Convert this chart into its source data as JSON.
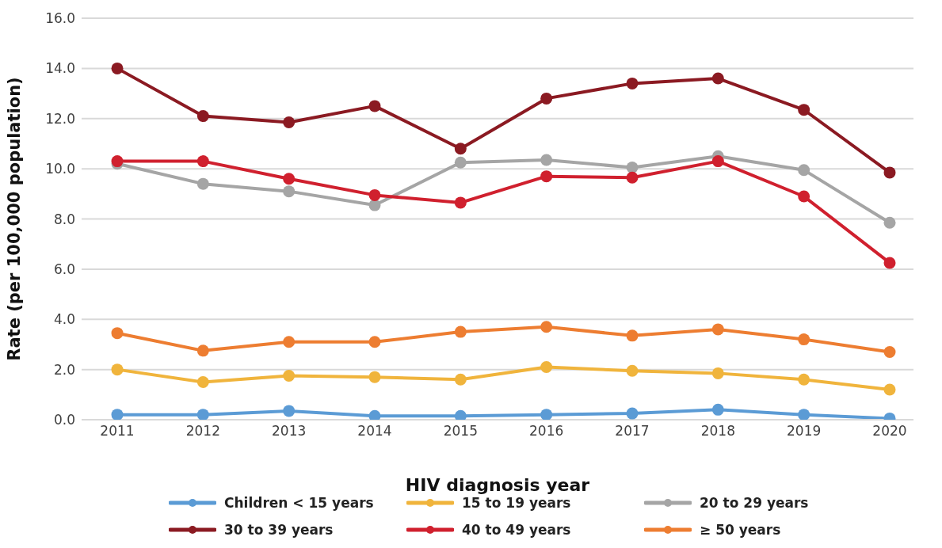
{
  "chart_data": {
    "type": "line",
    "xlabel": "HIV diagnosis year",
    "ylabel": "Rate   (per 100,000 population)",
    "categories": [
      "2011",
      "2012",
      "2013",
      "2014",
      "2015",
      "2016",
      "2017",
      "2018",
      "2019",
      "2020"
    ],
    "series": [
      {
        "name": "Children < 15 years",
        "color": "#5b9bd5",
        "values": [
          0.2,
          0.2,
          0.35,
          0.15,
          0.15,
          0.2,
          0.25,
          0.4,
          0.2,
          0.05
        ]
      },
      {
        "name": "15 to 19 years",
        "color": "#f0b43c",
        "values": [
          2.0,
          1.5,
          1.75,
          1.7,
          1.6,
          2.1,
          1.95,
          1.85,
          1.6,
          1.2
        ]
      },
      {
        "name": "20 to 29 years",
        "color": "#a5a5a5",
        "values": [
          10.2,
          9.4,
          9.1,
          8.55,
          10.25,
          10.35,
          10.05,
          10.5,
          9.95,
          7.85
        ]
      },
      {
        "name": "30 to 39 years",
        "color": "#8b1a22",
        "values": [
          14.0,
          12.1,
          11.85,
          12.5,
          10.8,
          12.8,
          13.4,
          13.6,
          12.35,
          9.85
        ]
      },
      {
        "name": "40 to 49 years",
        "color": "#d0202e",
        "values": [
          10.3,
          10.3,
          9.6,
          8.95,
          8.65,
          9.7,
          9.65,
          10.3,
          8.9,
          6.25
        ]
      },
      {
        "name": "≥ 50 years",
        "color": "#ed7d31",
        "values": [
          3.45,
          2.75,
          3.1,
          3.1,
          3.5,
          3.7,
          3.35,
          3.6,
          3.2,
          2.7
        ]
      }
    ],
    "ylim": [
      0,
      16
    ],
    "yticks": [
      {
        "value": 0,
        "label": "0.0"
      },
      {
        "value": 2,
        "label": "2.0"
      },
      {
        "value": 4,
        "label": "4.0"
      },
      {
        "value": 6,
        "label": "6.0"
      },
      {
        "value": 8,
        "label": "8.0"
      },
      {
        "value": 10,
        "label": "10.0"
      },
      {
        "value": 12,
        "label": "12.0"
      },
      {
        "value": 14,
        "label": "14.0"
      },
      {
        "value": 16,
        "label": "16.0"
      }
    ],
    "grid": "y",
    "legend": "bottom",
    "marker": "circle",
    "line_style": "solid"
  }
}
